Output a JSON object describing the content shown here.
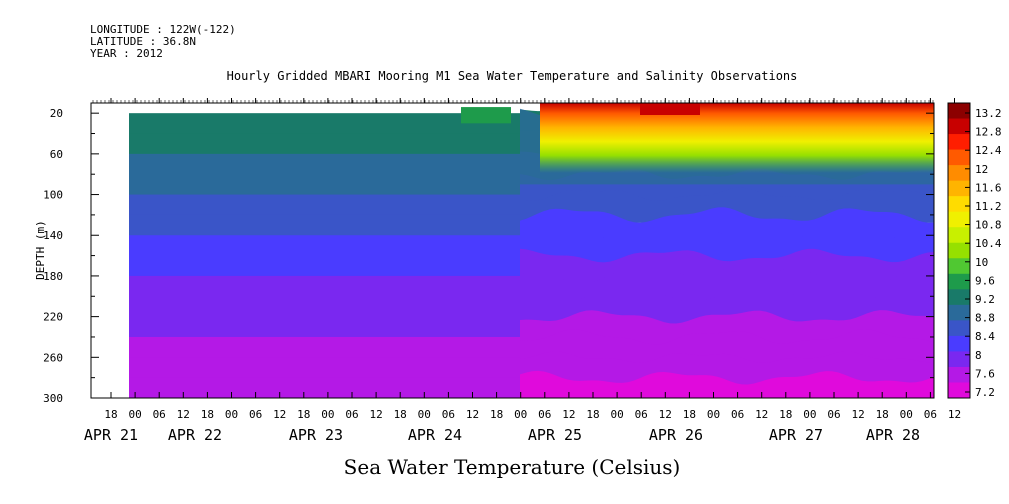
{
  "header": {
    "longitude": "LONGITUDE : 122W(-122)",
    "latitude": "LATITUDE : 36.8N",
    "year": "YEAR : 2012"
  },
  "chart_data": {
    "type": "heatmap",
    "title": "Hourly Gridded MBARI Mooring M1 Sea Water Temperature and Salinity Observations",
    "xlabel": "Sea Water Temperature (Celsius)",
    "ylabel": "DEPTH (m)",
    "x_hour_ticks": [
      "18",
      "00",
      "06",
      "12",
      "18",
      "00",
      "06",
      "12",
      "18",
      "00",
      "06",
      "12",
      "18",
      "00",
      "06",
      "12",
      "18",
      "00",
      "06",
      "12",
      "18",
      "00",
      "06",
      "12",
      "18",
      "00",
      "06",
      "12",
      "18",
      "00",
      "06",
      "12",
      "18",
      "00",
      "06",
      "12"
    ],
    "x_date_labels": [
      "APR 21",
      "APR 22",
      "APR 23",
      "APR 24",
      "APR 25",
      "APR 26",
      "APR 27",
      "APR 28"
    ],
    "y_ticks": [
      "20",
      "60",
      "100",
      "140",
      "180",
      "220",
      "260",
      "300"
    ],
    "ylim": [
      300,
      10
    ],
    "colorbar_labels": [
      "13.2",
      "12.8",
      "12.4",
      "12",
      "11.6",
      "11.2",
      "10.8",
      "10.4",
      "10",
      "9.6",
      "9.2",
      "8.8",
      "8.4",
      "8",
      "7.6",
      "7.2"
    ],
    "colorbar_colors": [
      "#8c0000",
      "#c80000",
      "#ff1e00",
      "#ff5a00",
      "#ff8c00",
      "#ffb400",
      "#ffdc00",
      "#f0f000",
      "#c8f000",
      "#96e000",
      "#50c832",
      "#1e9b4b",
      "#197a69",
      "#2a6a9a",
      "#3a55c8",
      "#4a3cff",
      "#7a28f0",
      "#b419e6",
      "#e00adc"
    ],
    "grid": false,
    "legend": "right colorbar",
    "notes_range_celsius": [
      7.2,
      13.2
    ],
    "depth_bands": [
      {
        "depth": 30,
        "temp": 9.3
      },
      {
        "depth": 50,
        "temp": 9.2
      },
      {
        "depth": 70,
        "temp": 9.0
      },
      {
        "depth": 90,
        "temp": 8.8
      },
      {
        "depth": 110,
        "temp": 8.6
      },
      {
        "depth": 130,
        "temp": 8.4
      },
      {
        "depth": 150,
        "temp": 8.2
      },
      {
        "depth": 170,
        "temp": 8.1
      },
      {
        "depth": 190,
        "temp": 8.0
      },
      {
        "depth": 210,
        "temp": 7.9
      },
      {
        "depth": 230,
        "temp": 7.8
      },
      {
        "depth": 250,
        "temp": 7.7
      },
      {
        "depth": 270,
        "temp": 7.55
      },
      {
        "depth": 290,
        "temp": 7.4
      }
    ]
  }
}
